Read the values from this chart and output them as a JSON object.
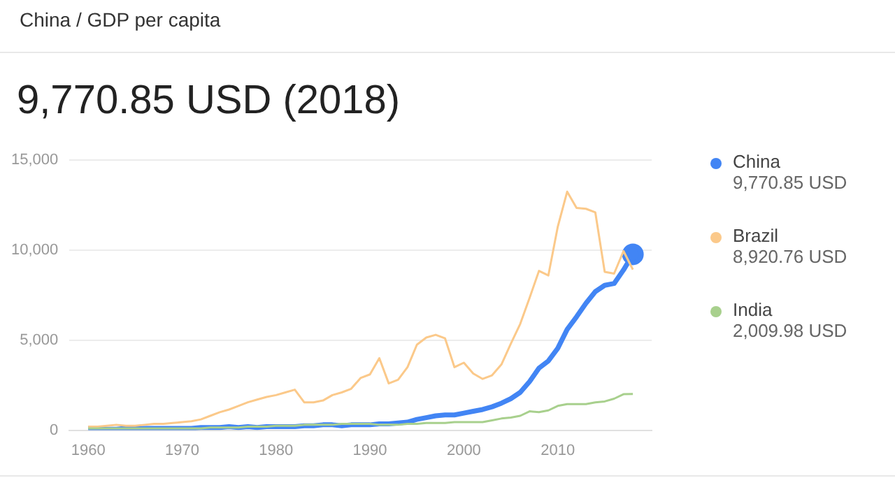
{
  "chart_data": {
    "type": "line",
    "title": "9,770.85 USD (2018)",
    "subtitle": "China / GDP per capita",
    "x": [
      1960,
      1961,
      1962,
      1963,
      1964,
      1965,
      1966,
      1967,
      1968,
      1969,
      1970,
      1971,
      1972,
      1973,
      1974,
      1975,
      1976,
      1977,
      1978,
      1979,
      1980,
      1981,
      1982,
      1983,
      1984,
      1985,
      1986,
      1987,
      1988,
      1989,
      1990,
      1991,
      1992,
      1993,
      1994,
      1995,
      1996,
      1997,
      1998,
      1999,
      2000,
      2001,
      2002,
      2003,
      2004,
      2005,
      2006,
      2007,
      2008,
      2009,
      2010,
      2011,
      2012,
      2013,
      2014,
      2015,
      2016,
      2017,
      2018
    ],
    "series": [
      {
        "name": "China",
        "color": "#4285f4",
        "values": [
          100,
          100,
          50,
          50,
          100,
          100,
          100,
          100,
          100,
          100,
          100,
          100,
          150,
          150,
          150,
          200,
          150,
          200,
          150,
          200,
          200,
          200,
          200,
          250,
          250,
          300,
          300,
          250,
          300,
          300,
          300,
          350,
          350,
          400,
          450,
          600,
          700,
          800,
          850,
          850,
          950,
          1050,
          1150,
          1300,
          1500,
          1750,
          2100,
          2700,
          3450,
          3850,
          4550,
          5600,
          6300,
          7050,
          7700,
          8050,
          8150,
          8900,
          9770.85
        ]
      },
      {
        "name": "Brazil",
        "color": "#fbc98a",
        "values": [
          200,
          200,
          250,
          300,
          250,
          250,
          300,
          350,
          350,
          400,
          450,
          500,
          600,
          800,
          1000,
          1150,
          1350,
          1550,
          1700,
          1850,
          1950,
          2100,
          2250,
          1550,
          1550,
          1650,
          1950,
          2100,
          2300,
          2900,
          3100,
          4000,
          2600,
          2800,
          3500,
          4750,
          5150,
          5300,
          5100,
          3500,
          3750,
          3150,
          2850,
          3050,
          3650,
          4800,
          5900,
          7350,
          8850,
          8600,
          11300,
          13250,
          12350,
          12300,
          12100,
          8800,
          8700,
          9950,
          8920.76
        ]
      },
      {
        "name": "India",
        "color": "#a8d08d",
        "values": [
          100,
          100,
          100,
          100,
          100,
          100,
          100,
          100,
          100,
          100,
          100,
          100,
          100,
          150,
          150,
          150,
          150,
          200,
          200,
          200,
          250,
          250,
          250,
          300,
          300,
          300,
          300,
          350,
          350,
          350,
          350,
          300,
          300,
          300,
          350,
          350,
          400,
          400,
          400,
          450,
          450,
          450,
          450,
          550,
          650,
          700,
          800,
          1050,
          1000,
          1100,
          1350,
          1450,
          1450,
          1450,
          1550,
          1600,
          1750,
          2000,
          2009.98
        ]
      }
    ],
    "annotations": [
      "9,770.85 USD",
      "8,920.76 USD",
      "2,009.98 USD"
    ],
    "xlim": [
      1958,
      2020
    ],
    "xticks": [
      1960,
      1970,
      1980,
      1990,
      2000,
      2010
    ],
    "ylim": [
      0,
      15000
    ],
    "yticks": [
      0,
      {
        "value": 5000,
        "label": "5,000"
      },
      {
        "value": 10000,
        "label": "10,000"
      },
      {
        "value": 15000,
        "label": "15,000"
      }
    ],
    "grid": "y",
    "legend": "right"
  }
}
